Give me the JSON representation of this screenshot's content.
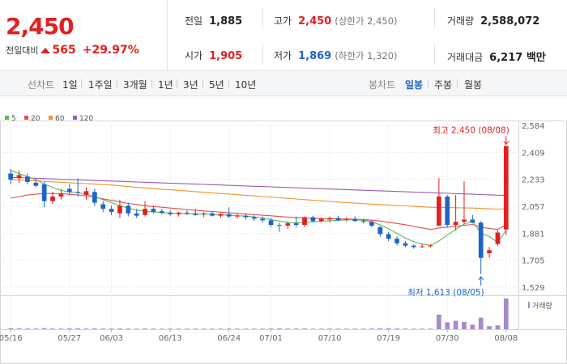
{
  "summary": {
    "price": "2,450",
    "change_label": "전일대비",
    "change_value": "565",
    "change_pct": "+29.97%",
    "prev_label": "전일",
    "prev_value": "1,885",
    "high_label": "고가",
    "high_value": "2,450",
    "high_sub": "(상한가 2,450)",
    "volume_label": "거래량",
    "volume_value": "2,588,072",
    "open_label": "시가",
    "open_value": "1,905",
    "low_label": "저가",
    "low_value": "1,869",
    "low_sub": "(하한가 1,320)",
    "amount_label": "거래대금",
    "amount_value": "6,217 백만"
  },
  "toolbar": {
    "line_label": "선차트",
    "line_items": [
      "1일",
      "1주일",
      "3개월",
      "1년",
      "3년",
      "5년",
      "10년"
    ],
    "candle_label": "봉차트",
    "candle_items": [
      "일봉",
      "주봉",
      "월봉"
    ],
    "active_candle": "일봉"
  },
  "colors": {
    "up": "#e22020",
    "down": "#1f64c8",
    "ma5": "#5cb85c",
    "ma20": "#e94b4b",
    "ma60": "#f0932b",
    "ma120": "#9b59b6",
    "volume": "#a78bc9"
  },
  "chart_data": {
    "type": "candlestick",
    "legend": [
      {
        "name": "5",
        "color": "#5cb85c"
      },
      {
        "name": "20",
        "color": "#e94b4b"
      },
      {
        "name": "60",
        "color": "#f0932b"
      },
      {
        "name": "120",
        "color": "#9b59b6"
      }
    ],
    "ylim": [
      1529,
      2584
    ],
    "y_ticks": [
      "2,584",
      "2,409",
      "2,233",
      "2,057",
      "1,881",
      "1,705",
      "1,529"
    ],
    "x_ticks": [
      "05/16",
      "05/27",
      "06/03",
      "06/13",
      "06/24",
      "07/01",
      "07/10",
      "07/19",
      "07/30",
      "08/08"
    ],
    "high_annotation": "최고 2,450 (08/08)",
    "low_annotation": "최저 1,613 (08/05)",
    "volume_label": "거래량",
    "candles": [
      {
        "d": "05/16",
        "o": 2270,
        "h": 2300,
        "l": 2200,
        "c": 2230
      },
      {
        "d": "05/17",
        "o": 2240,
        "h": 2290,
        "l": 2210,
        "c": 2260
      },
      {
        "d": "05/20",
        "o": 2250,
        "h": 2270,
        "l": 2200,
        "c": 2215
      },
      {
        "d": "05/21",
        "o": 2210,
        "h": 2230,
        "l": 2180,
        "c": 2190
      },
      {
        "d": "05/22",
        "o": 2200,
        "h": 2215,
        "l": 2050,
        "c": 2090
      },
      {
        "d": "05/23",
        "o": 2090,
        "h": 2150,
        "l": 2070,
        "c": 2120
      },
      {
        "d": "05/24",
        "o": 2120,
        "h": 2170,
        "l": 2100,
        "c": 2140
      },
      {
        "d": "05/27",
        "o": 2170,
        "h": 2200,
        "l": 2130,
        "c": 2150
      },
      {
        "d": "05/28",
        "o": 2150,
        "h": 2240,
        "l": 2120,
        "c": 2145
      },
      {
        "d": "05/29",
        "o": 2130,
        "h": 2180,
        "l": 2100,
        "c": 2155
      },
      {
        "d": "05/30",
        "o": 2150,
        "h": 2170,
        "l": 2060,
        "c": 2080
      },
      {
        "d": "05/31",
        "o": 2070,
        "h": 2090,
        "l": 2020,
        "c": 2040
      },
      {
        "d": "06/03",
        "o": 2040,
        "h": 2060,
        "l": 2000,
        "c": 2020
      },
      {
        "d": "06/04",
        "o": 2010,
        "h": 2100,
        "l": 1980,
        "c": 2060
      },
      {
        "d": "06/05",
        "o": 2060,
        "h": 2080,
        "l": 1990,
        "c": 2010
      },
      {
        "d": "06/07",
        "o": 2010,
        "h": 2040,
        "l": 1980,
        "c": 1995
      },
      {
        "d": "06/10",
        "o": 2000,
        "h": 2090,
        "l": 1990,
        "c": 2040
      },
      {
        "d": "06/11",
        "o": 2040,
        "h": 2060,
        "l": 2010,
        "c": 2020
      },
      {
        "d": "06/12",
        "o": 2025,
        "h": 2040,
        "l": 2005,
        "c": 2015
      },
      {
        "d": "06/13",
        "o": 2015,
        "h": 2030,
        "l": 1995,
        "c": 2005
      },
      {
        "d": "06/14",
        "o": 2005,
        "h": 2020,
        "l": 1990,
        "c": 2015
      },
      {
        "d": "06/17",
        "o": 2015,
        "h": 2030,
        "l": 2000,
        "c": 2010
      },
      {
        "d": "06/18",
        "o": 2010,
        "h": 2040,
        "l": 1995,
        "c": 2000
      },
      {
        "d": "06/19",
        "o": 2005,
        "h": 2020,
        "l": 1985,
        "c": 2010
      },
      {
        "d": "06/20",
        "o": 2010,
        "h": 2025,
        "l": 1990,
        "c": 1995
      },
      {
        "d": "06/21",
        "o": 1995,
        "h": 2015,
        "l": 1980,
        "c": 2005
      },
      {
        "d": "06/24",
        "o": 2005,
        "h": 2050,
        "l": 1980,
        "c": 1990
      },
      {
        "d": "06/25",
        "o": 1990,
        "h": 2010,
        "l": 1975,
        "c": 1995
      },
      {
        "d": "06/26",
        "o": 1995,
        "h": 2010,
        "l": 1970,
        "c": 1985
      },
      {
        "d": "06/27",
        "o": 1985,
        "h": 2000,
        "l": 1960,
        "c": 1975
      },
      {
        "d": "06/28",
        "o": 1975,
        "h": 1990,
        "l": 1950,
        "c": 1965
      },
      {
        "d": "07/01",
        "o": 1965,
        "h": 1980,
        "l": 1920,
        "c": 1935
      },
      {
        "d": "07/02",
        "o": 1935,
        "h": 1950,
        "l": 1890,
        "c": 1930
      },
      {
        "d": "07/03",
        "o": 1930,
        "h": 1960,
        "l": 1910,
        "c": 1945
      },
      {
        "d": "07/04",
        "o": 1945,
        "h": 1990,
        "l": 1920,
        "c": 1935
      },
      {
        "d": "07/05",
        "o": 1935,
        "h": 1990,
        "l": 1920,
        "c": 1985
      },
      {
        "d": "07/08",
        "o": 1985,
        "h": 1995,
        "l": 1950,
        "c": 1960
      },
      {
        "d": "07/09",
        "o": 1960,
        "h": 1985,
        "l": 1950,
        "c": 1975
      },
      {
        "d": "07/10",
        "o": 1970,
        "h": 1990,
        "l": 1950,
        "c": 1980
      },
      {
        "d": "07/11",
        "o": 1980,
        "h": 1995,
        "l": 1960,
        "c": 1965
      },
      {
        "d": "07/12",
        "o": 1970,
        "h": 1985,
        "l": 1955,
        "c": 1975
      },
      {
        "d": "07/15",
        "o": 1975,
        "h": 1990,
        "l": 1955,
        "c": 1960
      },
      {
        "d": "07/16",
        "o": 1960,
        "h": 1975,
        "l": 1945,
        "c": 1955
      },
      {
        "d": "07/17",
        "o": 1955,
        "h": 1965,
        "l": 1920,
        "c": 1930
      },
      {
        "d": "07/18",
        "o": 1920,
        "h": 1930,
        "l": 1860,
        "c": 1875
      },
      {
        "d": "07/19",
        "o": 1875,
        "h": 1890,
        "l": 1830,
        "c": 1845
      },
      {
        "d": "07/22",
        "o": 1845,
        "h": 1860,
        "l": 1800,
        "c": 1815
      },
      {
        "d": "07/23",
        "o": 1815,
        "h": 1830,
        "l": 1790,
        "c": 1800
      },
      {
        "d": "07/24",
        "o": 1800,
        "h": 1810,
        "l": 1780,
        "c": 1790
      },
      {
        "d": "07/25",
        "o": 1790,
        "h": 1810,
        "l": 1785,
        "c": 1795
      },
      {
        "d": "07/26",
        "o": 1795,
        "h": 1810,
        "l": 1790,
        "c": 1800
      },
      {
        "d": "07/29",
        "o": 1930,
        "h": 2240,
        "l": 1930,
        "c": 2120
      },
      {
        "d": "07/30",
        "o": 2120,
        "h": 2130,
        "l": 1920,
        "c": 1935
      },
      {
        "d": "07/31",
        "o": 1935,
        "h": 2130,
        "l": 1900,
        "c": 1955
      },
      {
        "d": "08/01",
        "o": 1955,
        "h": 2220,
        "l": 1940,
        "c": 1970
      },
      {
        "d": "08/02",
        "o": 1970,
        "h": 2000,
        "l": 1945,
        "c": 1950
      },
      {
        "d": "08/05",
        "o": 1950,
        "h": 1960,
        "l": 1613,
        "c": 1720
      },
      {
        "d": "08/06",
        "o": 1750,
        "h": 1790,
        "l": 1720,
        "c": 1770
      },
      {
        "d": "08/07",
        "o": 1810,
        "h": 1900,
        "l": 1800,
        "c": 1885
      },
      {
        "d": "08/08",
        "o": 1905,
        "h": 2450,
        "l": 1869,
        "c": 2450
      }
    ],
    "volume": [
      12,
      10,
      9,
      8,
      14,
      9,
      8,
      10,
      11,
      9,
      10,
      9,
      8,
      9,
      8,
      7,
      9,
      8,
      7,
      7,
      7,
      7,
      8,
      7,
      7,
      7,
      8,
      7,
      7,
      7,
      7,
      9,
      10,
      8,
      9,
      9,
      7,
      7,
      7,
      7,
      7,
      7,
      7,
      8,
      11,
      10,
      9,
      8,
      7,
      7,
      7,
      190,
      90,
      110,
      95,
      60,
      150,
      40,
      50,
      400
    ],
    "ma5": [
      2290,
      2270,
      2250,
      2230,
      2200,
      2180,
      2160,
      2150,
      2145,
      2135,
      2120,
      2100,
      2080,
      2060,
      2045,
      2030,
      2025,
      2020,
      2015,
      2012,
      2010,
      2008,
      2006,
      2005,
      2003,
      2000,
      1998,
      1995,
      1992,
      1988,
      1980,
      1970,
      1960,
      1950,
      1948,
      1950,
      1955,
      1960,
      1962,
      1965,
      1968,
      1968,
      1965,
      1955,
      1935,
      1910,
      1880,
      1850,
      1825,
      1810,
      1800,
      1830,
      1870,
      1905,
      1940,
      1960,
      1880,
      1860,
      1820,
      1900
    ],
    "ma20": [
      2110,
      2120,
      2130,
      2135,
      2140,
      2140,
      2138,
      2135,
      2130,
      2125,
      2115,
      2105,
      2095,
      2085,
      2075,
      2068,
      2060,
      2055,
      2050,
      2045,
      2040,
      2035,
      2030,
      2026,
      2022,
      2018,
      2014,
      2010,
      2006,
      2002,
      1998,
      1994,
      1990,
      1986,
      1982,
      1980,
      1978,
      1976,
      1975,
      1974,
      1973,
      1972,
      1970,
      1966,
      1960,
      1952,
      1944,
      1936,
      1925,
      1915,
      1905,
      1915,
      1920,
      1925,
      1932,
      1938,
      1920,
      1912,
      1905,
      1935
    ],
    "ma60": [
      2230,
      2228,
      2225,
      2222,
      2219,
      2216,
      2213,
      2210,
      2207,
      2204,
      2201,
      2198,
      2195,
      2190,
      2185,
      2180,
      2176,
      2172,
      2168,
      2164,
      2160,
      2156,
      2152,
      2148,
      2144,
      2140,
      2136,
      2132,
      2128,
      2124,
      2120,
      2116,
      2112,
      2108,
      2104,
      2100,
      2096,
      2092,
      2088,
      2084,
      2080,
      2077,
      2074,
      2071,
      2068,
      2065,
      2062,
      2059,
      2056,
      2053,
      2050,
      2049,
      2048,
      2047,
      2046,
      2045,
      2043,
      2040,
      2038,
      2040
    ],
    "ma120": [
      2245,
      2243,
      2241,
      2239,
      2237,
      2235,
      2233,
      2231,
      2229,
      2227,
      2225,
      2223,
      2221,
      2219,
      2217,
      2215,
      2213,
      2211,
      2209,
      2207,
      2205,
      2203,
      2201,
      2199,
      2197,
      2195,
      2193,
      2191,
      2189,
      2187,
      2185,
      2183,
      2181,
      2179,
      2177,
      2175,
      2173,
      2171,
      2169,
      2167,
      2165,
      2163,
      2161,
      2159,
      2157,
      2155,
      2153,
      2151,
      2149,
      2147,
      2145,
      2143,
      2141,
      2139,
      2137,
      2135,
      2133,
      2131,
      2129,
      2128
    ]
  }
}
